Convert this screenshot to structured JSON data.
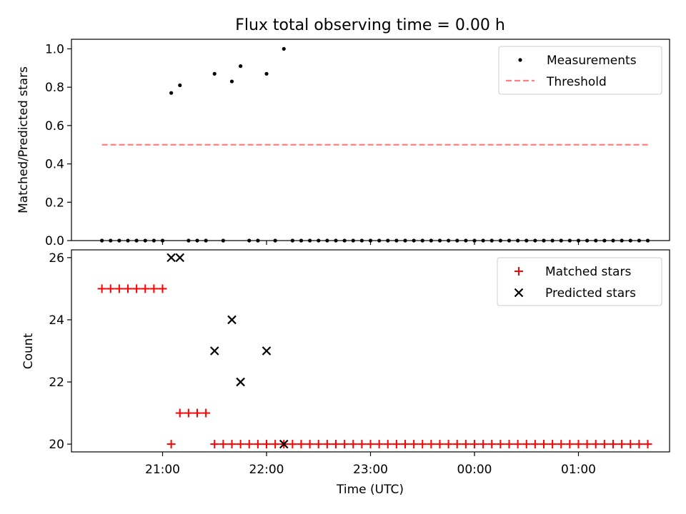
{
  "title": "Flux total observing time = 0.00 h",
  "colors": {
    "measurement": "#000000",
    "threshold": "#ff7f7f",
    "matched": "#ff0000",
    "predicted": "#000000"
  },
  "chart_data": [
    {
      "type": "scatter",
      "ylabel": "Matched/Predicted stars",
      "ylim": [
        0,
        1.05
      ],
      "yticks": [
        0.0,
        0.2,
        0.4,
        0.6,
        0.8,
        1.0
      ],
      "ytick_labels": [
        "0.0",
        "0.2",
        "0.4",
        "0.6",
        "0.8",
        "1.0"
      ],
      "legend_position": "top-right",
      "series": [
        {
          "name": "Measurements",
          "points": [
            [
              "20:25",
              0
            ],
            [
              "20:30",
              0
            ],
            [
              "20:35",
              0
            ],
            [
              "20:40",
              0
            ],
            [
              "20:45",
              0
            ],
            [
              "20:50",
              0
            ],
            [
              "20:55",
              0
            ],
            [
              "21:00",
              0
            ],
            [
              "21:05",
              0.77
            ],
            [
              "21:10",
              0.81
            ],
            [
              "21:15",
              0
            ],
            [
              "21:20",
              0
            ],
            [
              "21:25",
              0
            ],
            [
              "21:30",
              0.87
            ],
            [
              "21:35",
              0
            ],
            [
              "21:40",
              0.83
            ],
            [
              "21:45",
              0.91
            ],
            [
              "21:50",
              0
            ],
            [
              "21:55",
              0
            ],
            [
              "22:00",
              0.87
            ],
            [
              "22:05",
              0
            ],
            [
              "22:10",
              1.0
            ],
            [
              "22:15",
              0
            ],
            [
              "22:20",
              0
            ],
            [
              "22:25",
              0
            ],
            [
              "22:30",
              0
            ],
            [
              "22:35",
              0
            ],
            [
              "22:40",
              0
            ],
            [
              "22:45",
              0
            ],
            [
              "22:50",
              0
            ],
            [
              "22:55",
              0
            ],
            [
              "23:00",
              0
            ],
            [
              "23:05",
              0
            ],
            [
              "23:10",
              0
            ],
            [
              "23:15",
              0
            ],
            [
              "23:20",
              0
            ],
            [
              "23:25",
              0
            ],
            [
              "23:30",
              0
            ],
            [
              "23:35",
              0
            ],
            [
              "23:40",
              0
            ],
            [
              "23:45",
              0
            ],
            [
              "23:50",
              0
            ],
            [
              "23:55",
              0
            ],
            [
              "00:00",
              0
            ],
            [
              "00:05",
              0
            ],
            [
              "00:10",
              0
            ],
            [
              "00:15",
              0
            ],
            [
              "00:20",
              0
            ],
            [
              "00:25",
              0
            ],
            [
              "00:30",
              0
            ],
            [
              "00:35",
              0
            ],
            [
              "00:40",
              0
            ],
            [
              "00:45",
              0
            ],
            [
              "00:50",
              0
            ],
            [
              "00:55",
              0
            ],
            [
              "01:00",
              0
            ],
            [
              "01:05",
              0
            ],
            [
              "01:10",
              0
            ],
            [
              "01:15",
              0
            ],
            [
              "01:20",
              0
            ],
            [
              "01:25",
              0
            ],
            [
              "01:30",
              0
            ],
            [
              "01:35",
              0
            ],
            [
              "01:40",
              0
            ]
          ]
        },
        {
          "name": "Threshold",
          "style": "dashed-line",
          "x_range": [
            "20:25",
            "01:40"
          ],
          "y": 0.5
        }
      ]
    },
    {
      "type": "scatter",
      "xlabel": "Time (UTC)",
      "ylabel": "Count",
      "ylim": [
        19.75,
        26.25
      ],
      "yticks": [
        20,
        22,
        24,
        26
      ],
      "ytick_labels": [
        "20",
        "22",
        "24",
        "26"
      ],
      "xticks": [
        "21:00",
        "22:00",
        "23:00",
        "00:00",
        "01:00"
      ],
      "legend_position": "top-right",
      "series": [
        {
          "name": "Matched stars",
          "points": [
            [
              "20:25",
              25
            ],
            [
              "20:30",
              25
            ],
            [
              "20:35",
              25
            ],
            [
              "20:40",
              25
            ],
            [
              "20:45",
              25
            ],
            [
              "20:50",
              25
            ],
            [
              "20:55",
              25
            ],
            [
              "21:00",
              25
            ],
            [
              "21:05",
              20
            ],
            [
              "21:10",
              21
            ],
            [
              "21:15",
              21
            ],
            [
              "21:20",
              21
            ],
            [
              "21:25",
              21
            ],
            [
              "21:30",
              20
            ],
            [
              "21:35",
              20
            ],
            [
              "21:40",
              20
            ],
            [
              "21:45",
              20
            ],
            [
              "21:50",
              20
            ],
            [
              "21:55",
              20
            ],
            [
              "22:00",
              20
            ],
            [
              "22:05",
              20
            ],
            [
              "22:10",
              20
            ],
            [
              "22:15",
              20
            ],
            [
              "22:20",
              20
            ],
            [
              "22:25",
              20
            ],
            [
              "22:30",
              20
            ],
            [
              "22:35",
              20
            ],
            [
              "22:40",
              20
            ],
            [
              "22:45",
              20
            ],
            [
              "22:50",
              20
            ],
            [
              "22:55",
              20
            ],
            [
              "23:00",
              20
            ],
            [
              "23:05",
              20
            ],
            [
              "23:10",
              20
            ],
            [
              "23:15",
              20
            ],
            [
              "23:20",
              20
            ],
            [
              "23:25",
              20
            ],
            [
              "23:30",
              20
            ],
            [
              "23:35",
              20
            ],
            [
              "23:40",
              20
            ],
            [
              "23:45",
              20
            ],
            [
              "23:50",
              20
            ],
            [
              "23:55",
              20
            ],
            [
              "00:00",
              20
            ],
            [
              "00:05",
              20
            ],
            [
              "00:10",
              20
            ],
            [
              "00:15",
              20
            ],
            [
              "00:20",
              20
            ],
            [
              "00:25",
              20
            ],
            [
              "00:30",
              20
            ],
            [
              "00:35",
              20
            ],
            [
              "00:40",
              20
            ],
            [
              "00:45",
              20
            ],
            [
              "00:50",
              20
            ],
            [
              "00:55",
              20
            ],
            [
              "01:00",
              20
            ],
            [
              "01:05",
              20
            ],
            [
              "01:10",
              20
            ],
            [
              "01:15",
              20
            ],
            [
              "01:20",
              20
            ],
            [
              "01:25",
              20
            ],
            [
              "01:30",
              20
            ],
            [
              "01:35",
              20
            ],
            [
              "01:40",
              20
            ]
          ]
        },
        {
          "name": "Predicted stars",
          "points": [
            [
              "21:05",
              26
            ],
            [
              "21:10",
              26
            ],
            [
              "21:30",
              23
            ],
            [
              "21:40",
              24
            ],
            [
              "21:45",
              22
            ],
            [
              "22:00",
              23
            ],
            [
              "22:10",
              20
            ]
          ]
        }
      ]
    }
  ]
}
